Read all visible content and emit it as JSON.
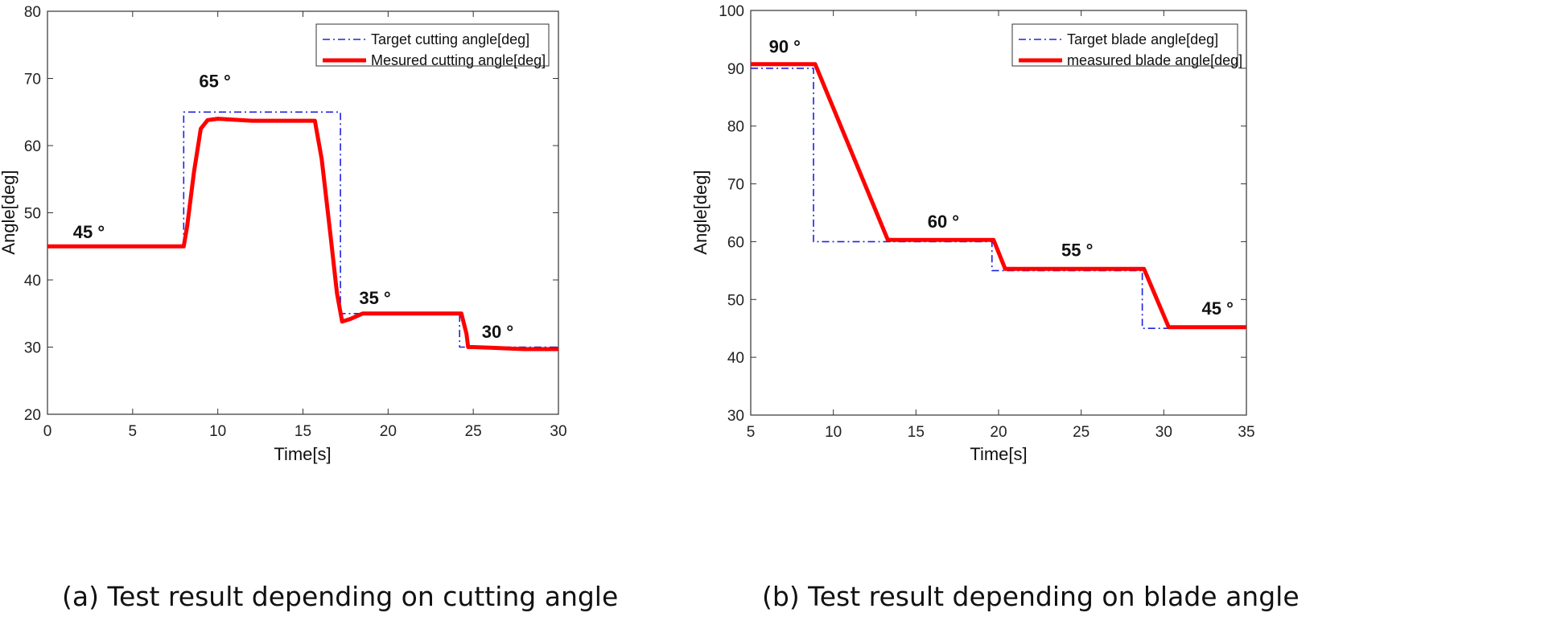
{
  "chart_data": [
    {
      "type": "line",
      "caption": "(a) Test result depending on cutting angle",
      "xlabel": "Time[s]",
      "ylabel": "Angle[deg]",
      "xlim": [
        0,
        30
      ],
      "ylim": [
        20,
        80
      ],
      "xticks": [
        "0",
        "5",
        "10",
        "15",
        "20",
        "25",
        "30"
      ],
      "yticks": [
        "20",
        "30",
        "40",
        "50",
        "60",
        "70",
        "80"
      ],
      "grid": false,
      "legend_position": "top-right",
      "series": [
        {
          "name": "Target cutting angle[deg]",
          "style": "dashdot",
          "color": "#2020e0",
          "x": [
            0,
            8,
            8,
            17.2,
            17.2,
            24.2,
            24.2,
            30
          ],
          "y": [
            45,
            45,
            65,
            65,
            35,
            35,
            30,
            30
          ]
        },
        {
          "name": "Mesured cutting angle[deg]",
          "style": "solid",
          "color": "#ff0000",
          "x": [
            0,
            8,
            8.2,
            8.6,
            9.0,
            9.4,
            10,
            12,
            15.7,
            16.1,
            16.6,
            17.0,
            17.3,
            17.8,
            18.5,
            20,
            24.3,
            24.6,
            24.7,
            25,
            26,
            28,
            30
          ],
          "y": [
            45,
            45,
            48,
            56,
            62.5,
            63.8,
            64,
            63.7,
            63.7,
            58,
            47,
            38,
            33.8,
            34.2,
            35,
            35,
            35,
            32,
            30,
            30,
            29.9,
            29.7,
            29.7
          ]
        }
      ],
      "annotations": [
        {
          "text": "45 °",
          "x": 1.5,
          "y": 46.2
        },
        {
          "text": "65 °",
          "x": 8.9,
          "y": 68.7
        },
        {
          "text": "35 °",
          "x": 18.3,
          "y": 36.4
        },
        {
          "text": "30 °",
          "x": 25.5,
          "y": 31.4
        }
      ]
    },
    {
      "type": "line",
      "caption": "(b) Test result depending on blade angle",
      "xlabel": "Time[s]",
      "ylabel": "Angle[deg]",
      "xlim": [
        5,
        35
      ],
      "ylim": [
        30,
        100
      ],
      "xticks": [
        "5",
        "10",
        "15",
        "20",
        "25",
        "30",
        "35"
      ],
      "yticks": [
        "30",
        "40",
        "50",
        "60",
        "70",
        "80",
        "90",
        "100"
      ],
      "grid": false,
      "legend_position": "top-right",
      "series": [
        {
          "name": "Target blade angle[deg]",
          "style": "dashdot",
          "color": "#2020e0",
          "x": [
            5,
            8.8,
            8.8,
            19.6,
            19.6,
            28.7,
            28.7,
            35
          ],
          "y": [
            90,
            90,
            60,
            60,
            55,
            55,
            45,
            45
          ]
        },
        {
          "name": "measured blade angle[deg]",
          "style": "solid",
          "color": "#ff0000",
          "x": [
            5,
            8.9,
            13.3,
            19.7,
            20.4,
            28.8,
            30.3,
            35
          ],
          "y": [
            90.7,
            90.7,
            60.3,
            60.3,
            55.3,
            55.3,
            45.2,
            45.2
          ]
        }
      ],
      "annotations": [
        {
          "text": "90 °",
          "x": 6.1,
          "y": 92.7
        },
        {
          "text": "60 °",
          "x": 15.7,
          "y": 62.4
        },
        {
          "text": "55 °",
          "x": 23.8,
          "y": 57.5
        },
        {
          "text": "45 °",
          "x": 32.3,
          "y": 47.4
        }
      ]
    }
  ]
}
